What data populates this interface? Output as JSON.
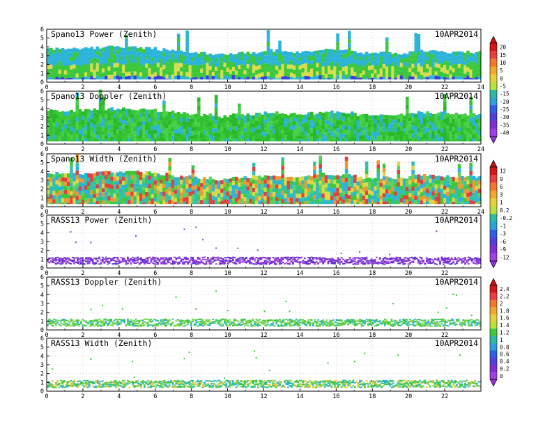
{
  "figure": {
    "date": "10APR2014",
    "colorbars": [
      {
        "ticks": [
          "20",
          "15",
          "10",
          "5",
          "0",
          "-5",
          "-15",
          "-20",
          "-25",
          "-30",
          "-35",
          "-40"
        ]
      },
      {
        "ticks": [
          "12",
          "9",
          "6",
          "3",
          "1",
          "0.2",
          "-0.2",
          "-1",
          "-3",
          "-6",
          "-9",
          "-12"
        ]
      },
      {
        "ticks": [
          "2.4",
          "2.2",
          "2",
          "1.8",
          "1.6",
          "1.4",
          "1.2",
          "1",
          "0.8",
          "0.6",
          "0.4",
          "0.2",
          "0"
        ]
      }
    ]
  },
  "chart_data": [
    {
      "type": "heatmap",
      "title": "Spano13 Power (Zenith)",
      "date": "10APR2014",
      "xlim": [
        0,
        24
      ],
      "ylim": [
        0,
        6
      ],
      "xticks": [
        "0",
        "2",
        "4",
        "6",
        "8",
        "10",
        "12",
        "14",
        "16",
        "18",
        "20",
        "22",
        "24"
      ],
      "yticks": [
        "0",
        "1",
        "2",
        "3",
        "4",
        "5",
        "6"
      ],
      "gate_top_km": [
        3.8,
        3.8,
        3.9,
        4.0,
        4.0,
        3.9,
        3.7,
        3.5,
        3.3,
        3.1,
        3.3,
        3.4,
        3.6,
        3.4,
        3.5,
        3.7,
        3.6,
        3.3,
        3.3,
        3.3,
        3.6,
        3.5,
        3.4,
        3.4
      ],
      "grid": true
    },
    {
      "type": "heatmap",
      "title": "Spano13 Doppler (Zenith)",
      "date": "10APR2014",
      "xlim": [
        0,
        24
      ],
      "ylim": [
        0,
        6
      ],
      "xticks": [
        "0",
        "2",
        "4",
        "6",
        "8",
        "10",
        "12",
        "14",
        "16",
        "18",
        "20",
        "22",
        "24"
      ],
      "yticks": [
        "0",
        "1",
        "2",
        "3",
        "4",
        "5",
        "6"
      ],
      "gate_top_km": [
        3.8,
        3.8,
        3.9,
        4.0,
        4.0,
        3.9,
        3.7,
        3.5,
        3.3,
        3.1,
        3.3,
        3.4,
        3.6,
        3.4,
        3.5,
        3.7,
        3.6,
        3.3,
        3.3,
        3.3,
        3.6,
        3.5,
        3.4,
        3.4
      ],
      "grid": true
    },
    {
      "type": "heatmap",
      "title": "Spano13 Width (Zenith)",
      "date": "10APR2014",
      "xlim": [
        0,
        24
      ],
      "ylim": [
        0,
        6
      ],
      "xticks": [
        "0",
        "2",
        "4",
        "6",
        "8",
        "10",
        "12",
        "14",
        "16",
        "18",
        "20",
        "22",
        "24"
      ],
      "yticks": [
        "0",
        "1",
        "2",
        "3",
        "4",
        "5",
        "6"
      ],
      "gate_top_km": [
        3.8,
        3.8,
        3.9,
        4.0,
        4.0,
        3.9,
        3.7,
        3.5,
        3.3,
        3.1,
        3.3,
        3.4,
        3.6,
        3.4,
        3.5,
        3.7,
        3.6,
        3.3,
        3.3,
        3.3,
        3.6,
        3.5,
        3.4,
        3.4
      ],
      "grid": true
    },
    {
      "type": "heatmap",
      "title": "RASS13 Power (Zenith)",
      "date": "10APR2014",
      "xlim": [
        0,
        24
      ],
      "ylim": [
        0,
        6
      ],
      "xticks": [
        "0",
        "2",
        "4",
        "6",
        "8",
        "10",
        "12",
        "14",
        "16",
        "18",
        "20",
        "22"
      ],
      "yticks": [
        "0",
        "1",
        "2",
        "3",
        "4",
        "5",
        "6"
      ],
      "band_km": [
        0.5,
        1.3
      ],
      "grid": true
    },
    {
      "type": "heatmap",
      "title": "RASS13 Doppler (Zenith)",
      "date": "10APR2014",
      "xlim": [
        0,
        24
      ],
      "ylim": [
        0,
        6
      ],
      "xticks": [
        "0",
        "2",
        "4",
        "6",
        "8",
        "10",
        "12",
        "14",
        "16",
        "18",
        "20",
        "22"
      ],
      "yticks": [
        "0",
        "1",
        "2",
        "3",
        "4",
        "5",
        "6"
      ],
      "band_km": [
        0.5,
        1.3
      ],
      "grid": true
    },
    {
      "type": "heatmap",
      "title": "RASS13 Width (Zenith)",
      "date": "10APR2014",
      "xlim": [
        0,
        24
      ],
      "ylim": [
        0,
        6
      ],
      "xticks": [
        "0",
        "2",
        "4",
        "6",
        "8",
        "10",
        "12",
        "14",
        "16",
        "18",
        "20",
        "22"
      ],
      "yticks": [
        "0",
        "1",
        "2",
        "3",
        "4",
        "5",
        "6"
      ],
      "band_km": [
        0.5,
        1.3
      ],
      "grid": true
    }
  ]
}
